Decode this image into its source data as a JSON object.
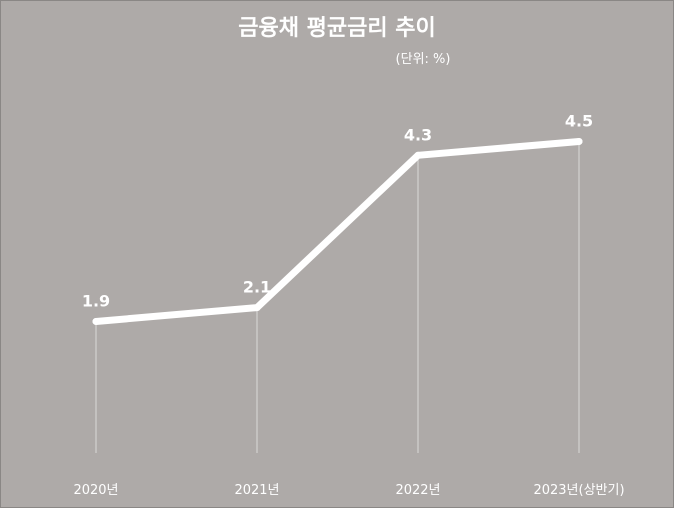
{
  "chart_data": {
    "type": "line",
    "title": "금융채 평균금리 추이",
    "unit_label": "(단위: %)",
    "categories": [
      "2020년",
      "2021년",
      "2022년",
      "2023년(상반기)"
    ],
    "series": [
      {
        "values": [
          1.9,
          2.1,
          4.3,
          4.5
        ],
        "data_labels": [
          "1.9",
          "2.1",
          "4.3",
          "4.5"
        ]
      }
    ],
    "ylim": [
      0,
      6.5
    ],
    "grid": false,
    "drop_lines": true,
    "legend": "none",
    "colors": {
      "background": "#aeaaa8",
      "line": "#ffffff",
      "text": "#ffffff",
      "drop_line": "#ffffff"
    }
  }
}
